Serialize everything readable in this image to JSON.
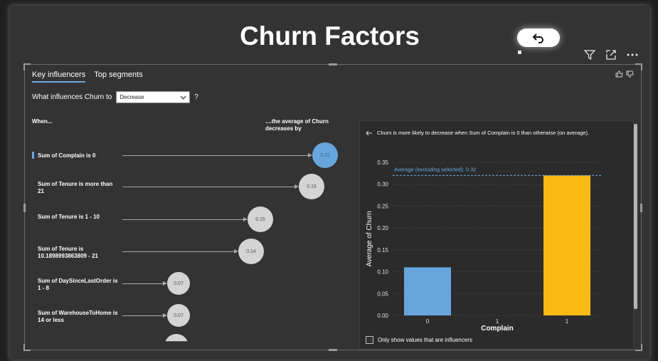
{
  "page": {
    "title": "Churn Factors"
  },
  "header_icons": [
    "filter-icon",
    "focus-mode-icon",
    "more-options-icon"
  ],
  "visual": {
    "tabs": [
      {
        "label": "Key influencers",
        "active": true
      },
      {
        "label": "Top segments",
        "active": false
      }
    ],
    "question": {
      "prefix": "What influences Churn to",
      "selected": "Decrease",
      "suffix": "?"
    },
    "column_when": "When...",
    "column_avg": "....the average of Churn decreases by",
    "influencers": [
      {
        "label": "Sum of Complain is 0",
        "value": "0.21",
        "selected": true
      },
      {
        "label": "Sum of Tenure is more than 21",
        "value": "0.19",
        "selected": false
      },
      {
        "label": "Sum of Tenure is 1 - 10",
        "value": "0.15",
        "selected": false
      },
      {
        "label": "Sum of Tenure is 10.1898993863809 - 21",
        "value": "0.14",
        "selected": false
      },
      {
        "label": "Sum of DaySinceLastOrder is 1 - 8",
        "value": "0.07",
        "selected": false
      },
      {
        "label": "Sum of WarehouseToHome is 14 or less",
        "value": "0.07",
        "selected": false
      }
    ],
    "detail": {
      "headline": "Churn is more likely to decrease when Sum of Complain is 0 than otherwise (on average).",
      "checkbox_label": "Only show values that are influencers"
    },
    "colors": {
      "accent": "#6aa9e0",
      "bar_selected": "#67a6dc",
      "bar_other": "#f8b914"
    }
  },
  "chart_data": {
    "type": "bar",
    "categories": [
      "0",
      "1",
      "1"
    ],
    "values": [
      0.11,
      null,
      0.32
    ],
    "xlabel": "Complain",
    "ylabel": "Average of Churn",
    "ylim": [
      0,
      0.35
    ],
    "yticks": [
      "0.00",
      "0.05",
      "0.10",
      "0.15",
      "0.20",
      "0.25",
      "0.30",
      "0.35"
    ],
    "reference_line": {
      "label": "Average (excluding selected): 0.32",
      "value": 0.32
    },
    "grid": true
  }
}
